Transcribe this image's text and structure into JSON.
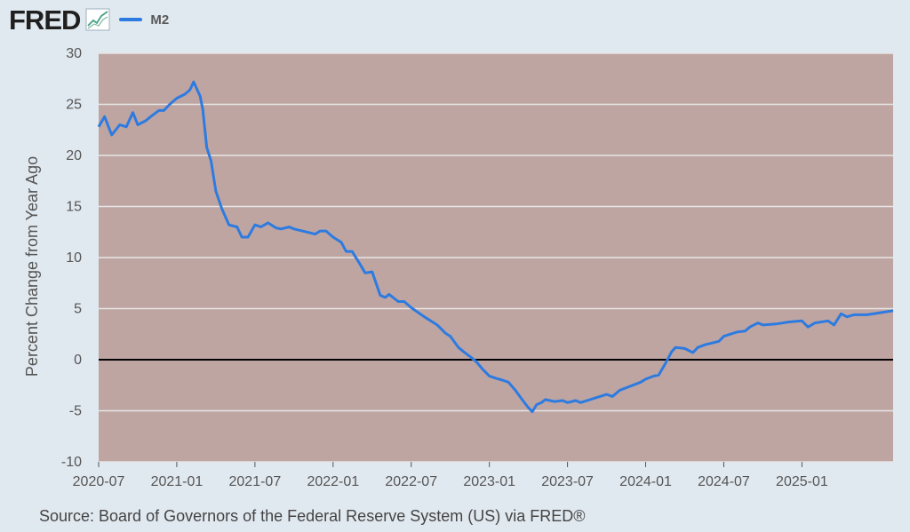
{
  "header": {
    "logo_text": "FRED",
    "logo_icon": "trend-chart-icon"
  },
  "source_text": "Source: Board of Governors of the Federal Reserve System (US) via FRED®",
  "colors": {
    "background": "#e1e9f0",
    "plot_background": "#bfa5a2",
    "series": "#2d7be0",
    "zero_line": "#000000",
    "grid": "#e6e6e6"
  },
  "chart_data": {
    "type": "line",
    "title": "",
    "xlabel": "",
    "ylabel": "Percent Change from Year Ago",
    "ylim": [
      -10,
      30
    ],
    "yticks": [
      30,
      25,
      20,
      15,
      10,
      5,
      0,
      -5,
      -10
    ],
    "ytick_labels": [
      "30",
      "25",
      "20",
      "15",
      "10",
      "5",
      "0",
      "-5",
      "-10"
    ],
    "xlim": [
      "2020-07",
      "2025-08"
    ],
    "xticks": [
      "2020-07",
      "2021-01",
      "2021-07",
      "2022-01",
      "2022-07",
      "2023-01",
      "2023-07",
      "2024-01",
      "2024-07",
      "2025-01"
    ],
    "grid": true,
    "legend": "top-left",
    "series": [
      {
        "name": "M2",
        "color": "#2d7be0",
        "points": [
          [
            "2020-07",
            22.8
          ],
          [
            "2020-07-15",
            23.8
          ],
          [
            "2020-08",
            22.0
          ],
          [
            "2020-08-20",
            23.0
          ],
          [
            "2020-09-05",
            22.8
          ],
          [
            "2020-09-20",
            24.2
          ],
          [
            "2020-10",
            23.0
          ],
          [
            "2020-10-20",
            23.4
          ],
          [
            "2020-11",
            23.8
          ],
          [
            "2020-11-20",
            24.4
          ],
          [
            "2020-12",
            24.4
          ],
          [
            "2020-12-15",
            25.0
          ],
          [
            "2021-01",
            25.6
          ],
          [
            "2021-01-20",
            26.0
          ],
          [
            "2021-02",
            26.4
          ],
          [
            "2021-02-10",
            27.2
          ],
          [
            "2021-02-25",
            25.8
          ],
          [
            "2021-03",
            24.5
          ],
          [
            "2021-03-10",
            20.8
          ],
          [
            "2021-03-20",
            19.5
          ],
          [
            "2021-04",
            16.5
          ],
          [
            "2021-04-15",
            14.8
          ],
          [
            "2021-05",
            13.2
          ],
          [
            "2021-05-20",
            13.0
          ],
          [
            "2021-06",
            12.0
          ],
          [
            "2021-06-15",
            12.0
          ],
          [
            "2021-07",
            13.2
          ],
          [
            "2021-07-15",
            13.0
          ],
          [
            "2021-08",
            13.4
          ],
          [
            "2021-08-20",
            12.9
          ],
          [
            "2021-09",
            12.8
          ],
          [
            "2021-09-20",
            13.0
          ],
          [
            "2021-10",
            12.8
          ],
          [
            "2021-11",
            12.5
          ],
          [
            "2021-11-20",
            12.3
          ],
          [
            "2021-12",
            12.6
          ],
          [
            "2021-12-15",
            12.6
          ],
          [
            "2022-01",
            12.0
          ],
          [
            "2022-01-20",
            11.5
          ],
          [
            "2022-02",
            10.6
          ],
          [
            "2022-02-15",
            10.6
          ],
          [
            "2022-03",
            9.5
          ],
          [
            "2022-03-15",
            8.5
          ],
          [
            "2022-04",
            8.6
          ],
          [
            "2022-04-20",
            6.3
          ],
          [
            "2022-05",
            6.1
          ],
          [
            "2022-05-10",
            6.4
          ],
          [
            "2022-06",
            5.7
          ],
          [
            "2022-06-15",
            5.7
          ],
          [
            "2022-07",
            5.1
          ],
          [
            "2022-08",
            4.2
          ],
          [
            "2022-09",
            3.4
          ],
          [
            "2022-09-20",
            2.6
          ],
          [
            "2022-10",
            2.3
          ],
          [
            "2022-10-20",
            1.2
          ],
          [
            "2022-11",
            0.8
          ],
          [
            "2022-11-20",
            0.2
          ],
          [
            "2022-12",
            -0.2
          ],
          [
            "2022-12-15",
            -0.9
          ],
          [
            "2023-01",
            -1.6
          ],
          [
            "2023-01-15",
            -1.8
          ],
          [
            "2023-02",
            -2.0
          ],
          [
            "2023-02-15",
            -2.2
          ],
          [
            "2023-03",
            -3.0
          ],
          [
            "2023-03-15",
            -3.8
          ],
          [
            "2023-04",
            -4.7
          ],
          [
            "2023-04-10",
            -5.1
          ],
          [
            "2023-04-20",
            -4.4
          ],
          [
            "2023-05",
            -4.2
          ],
          [
            "2023-05-10",
            -3.9
          ],
          [
            "2023-06",
            -4.1
          ],
          [
            "2023-06-20",
            -4.0
          ],
          [
            "2023-07",
            -4.2
          ],
          [
            "2023-07-20",
            -4.0
          ],
          [
            "2023-08",
            -4.2
          ],
          [
            "2023-09",
            -3.8
          ],
          [
            "2023-10",
            -3.4
          ],
          [
            "2023-10-15",
            -3.6
          ],
          [
            "2023-11",
            -3.0
          ],
          [
            "2023-12",
            -2.5
          ],
          [
            "2023-12-20",
            -2.2
          ],
          [
            "2024-01",
            -1.9
          ],
          [
            "2024-01-20",
            -1.6
          ],
          [
            "2024-02",
            -1.5
          ],
          [
            "2024-02-15",
            -0.5
          ],
          [
            "2024-03",
            0.8
          ],
          [
            "2024-03-10",
            1.2
          ],
          [
            "2024-04",
            1.1
          ],
          [
            "2024-04-20",
            0.7
          ],
          [
            "2024-05",
            1.2
          ],
          [
            "2024-05-20",
            1.5
          ],
          [
            "2024-06",
            1.6
          ],
          [
            "2024-06-20",
            1.8
          ],
          [
            "2024-07",
            2.3
          ],
          [
            "2024-08",
            2.7
          ],
          [
            "2024-08-20",
            2.8
          ],
          [
            "2024-09",
            3.2
          ],
          [
            "2024-09-20",
            3.6
          ],
          [
            "2024-10",
            3.4
          ],
          [
            "2024-11",
            3.5
          ],
          [
            "2024-12",
            3.7
          ],
          [
            "2025-01",
            3.8
          ],
          [
            "2025-01-15",
            3.2
          ],
          [
            "2025-02",
            3.6
          ],
          [
            "2025-03",
            3.8
          ],
          [
            "2025-03-15",
            3.4
          ],
          [
            "2025-04",
            4.5
          ],
          [
            "2025-04-15",
            4.2
          ],
          [
            "2025-05",
            4.4
          ],
          [
            "2025-06",
            4.4
          ],
          [
            "2025-07",
            4.6
          ],
          [
            "2025-08",
            4.8
          ]
        ]
      }
    ]
  }
}
